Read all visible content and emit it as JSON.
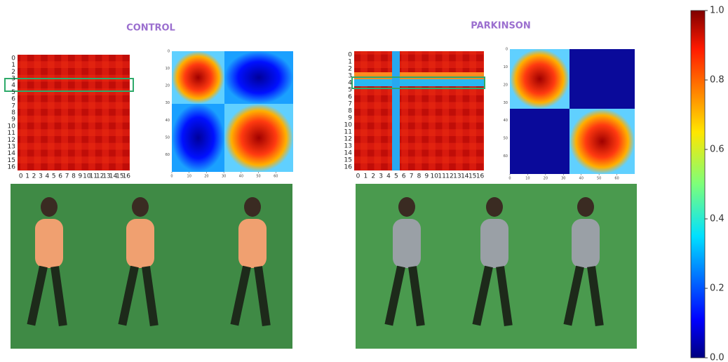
{
  "panels": [
    {
      "title": "CONTROL",
      "matrix_ticks": [
        0,
        1,
        2,
        3,
        4,
        5,
        6,
        7,
        8,
        9,
        10,
        11,
        12,
        13,
        14,
        15,
        16
      ],
      "similarity_range": [
        0,
        70
      ],
      "similarity_ticks": [
        0,
        10,
        20,
        30,
        40,
        50,
        60
      ]
    },
    {
      "title": "PARKINSON",
      "matrix_ticks": [
        0,
        1,
        2,
        3,
        4,
        5,
        6,
        7,
        8,
        9,
        10,
        11,
        12,
        13,
        14,
        15,
        16
      ],
      "similarity_range": [
        0,
        70
      ],
      "similarity_ticks": [
        0,
        10,
        20,
        30,
        40,
        50,
        60
      ]
    }
  ],
  "colorbar": {
    "range": [
      0,
      1
    ],
    "ticks": [
      {
        "value": 0,
        "label": "0.0"
      },
      {
        "value": 0.2,
        "label": "0.2"
      },
      {
        "value": 0.4,
        "label": "0.4"
      },
      {
        "value": 0.6,
        "label": "0.6"
      },
      {
        "value": 0.8,
        "label": "0.8"
      },
      {
        "value": 1,
        "label": "1.0"
      }
    ]
  }
}
